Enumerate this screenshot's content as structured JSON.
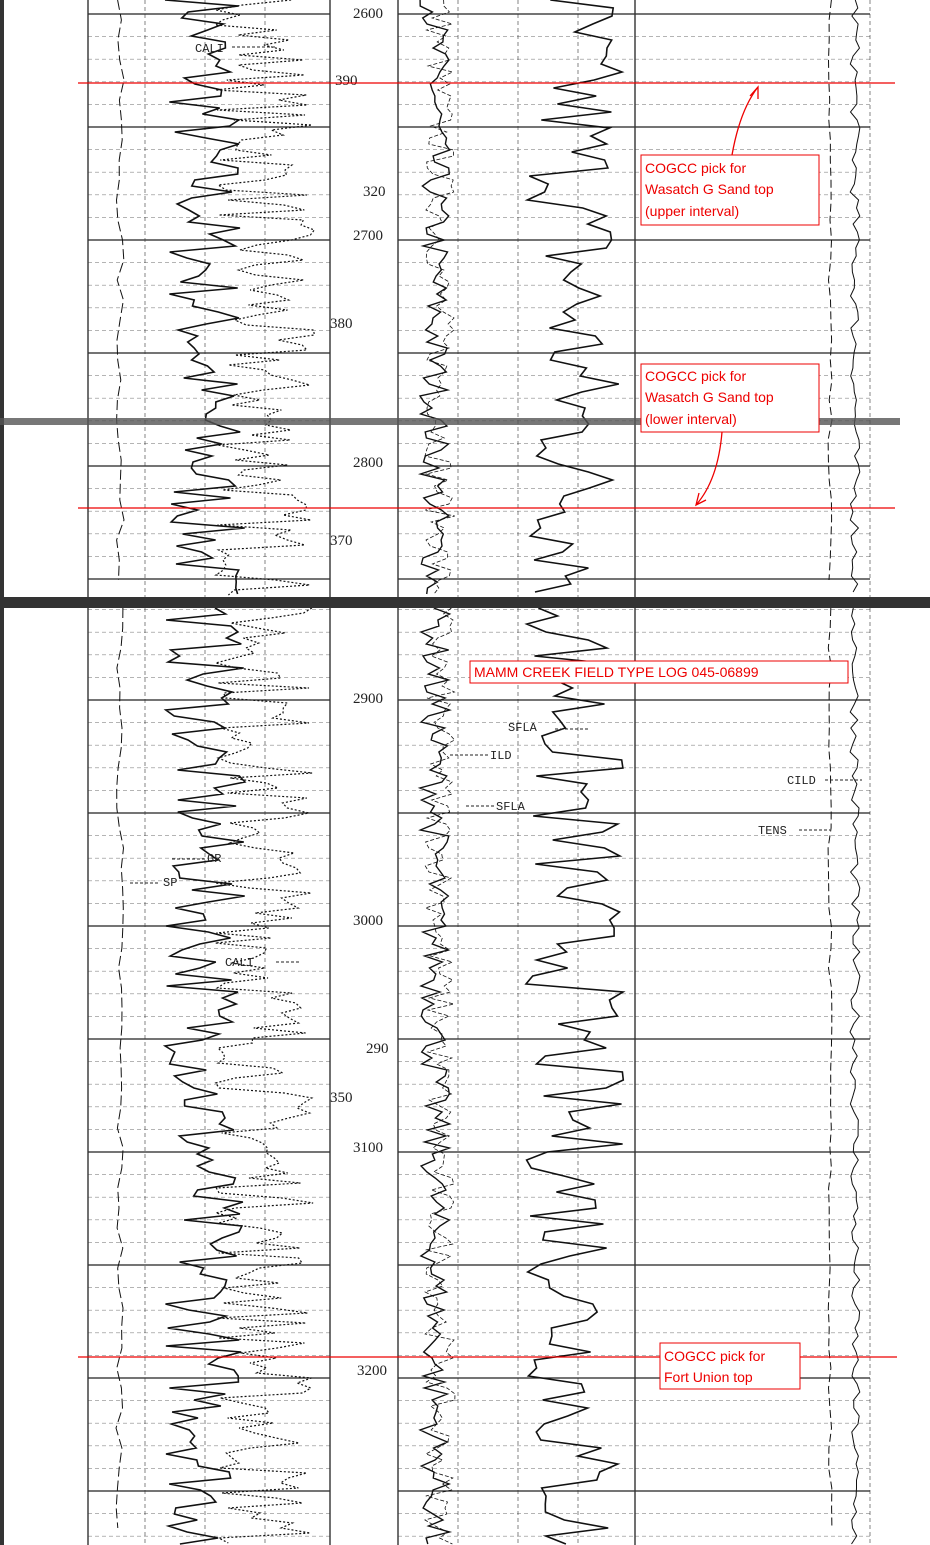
{
  "header": {
    "title": "MAMM CREEK FIELD TYPE LOG 045-06899"
  },
  "depth_labels": [
    "2600",
    "390",
    "320",
    "2700",
    "380",
    "2800",
    "370",
    "2900",
    "3000",
    "290",
    "350",
    "3100",
    "3200"
  ],
  "curve_labels": [
    "CALI",
    "SFLA",
    "ILD",
    "SFLA",
    "CILD",
    "TENS",
    "GR",
    "SP",
    "CALI"
  ],
  "annotations": [
    {
      "lines": [
        "COGCC pick for",
        "Wasatch G Sand top",
        "(upper interval)"
      ]
    },
    {
      "lines": [
        "COGCC pick for",
        "Wasatch G Sand top",
        "(lower interval)"
      ]
    },
    {
      "lines": [
        "COGCC pick for",
        "Fort Union top"
      ]
    }
  ]
}
